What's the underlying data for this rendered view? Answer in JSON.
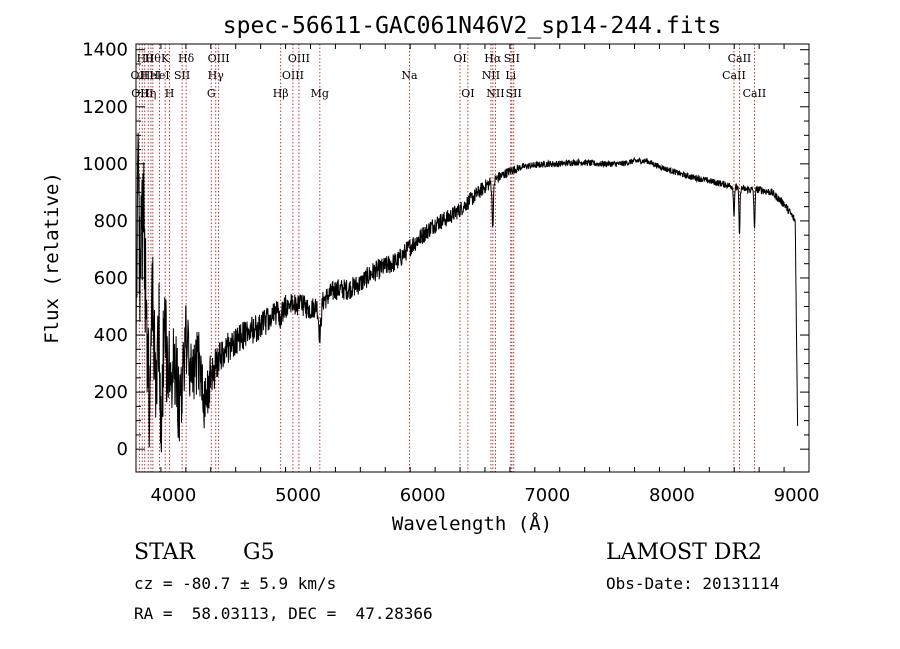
{
  "chart_data": {
    "type": "line",
    "title": "spec-56611-GAC061N46V2_sp14-244.fits",
    "xlabel": "Wavelength (Å)",
    "ylabel": "Flux (relative)",
    "xlim": [
      3700,
      9100
    ],
    "ylim": [
      -80,
      1420
    ],
    "xticks": [
      4000,
      5000,
      6000,
      7000,
      8000,
      9000
    ],
    "yticks": [
      0,
      200,
      400,
      600,
      800,
      1000,
      1200,
      1400
    ],
    "grid": false,
    "line_color": "#000000",
    "marker_line_color": "#b22222",
    "series": [
      {
        "anchors": [
          [
            3700,
            320
          ],
          [
            3715,
            1100
          ],
          [
            3730,
            600
          ],
          [
            3760,
            850
          ],
          [
            3790,
            300
          ],
          [
            3810,
            120
          ],
          [
            3830,
            550
          ],
          [
            3860,
            200
          ],
          [
            3880,
            480
          ],
          [
            3900,
            150
          ],
          [
            3930,
            420
          ],
          [
            3960,
            250
          ],
          [
            4000,
            340
          ],
          [
            4050,
            150
          ],
          [
            4100,
            380
          ],
          [
            4150,
            240
          ],
          [
            4200,
            320
          ],
          [
            4250,
            150
          ],
          [
            4300,
            260
          ],
          [
            4350,
            300
          ],
          [
            4400,
            340
          ],
          [
            4500,
            380
          ],
          [
            4600,
            410
          ],
          [
            4700,
            430
          ],
          [
            4800,
            470
          ],
          [
            4900,
            500
          ],
          [
            5000,
            510
          ],
          [
            5100,
            490
          ],
          [
            5200,
            520
          ],
          [
            5300,
            560
          ],
          [
            5400,
            560
          ],
          [
            5500,
            580
          ],
          [
            5600,
            620
          ],
          [
            5700,
            640
          ],
          [
            5800,
            660
          ],
          [
            5900,
            710
          ],
          [
            6000,
            750
          ],
          [
            6100,
            790
          ],
          [
            6200,
            810
          ],
          [
            6300,
            840
          ],
          [
            6400,
            880
          ],
          [
            6500,
            920
          ],
          [
            6600,
            950
          ],
          [
            6700,
            975
          ],
          [
            6800,
            990
          ],
          [
            6900,
            995
          ],
          [
            7000,
            1000
          ],
          [
            7100,
            1000
          ],
          [
            7200,
            1005
          ],
          [
            7300,
            1005
          ],
          [
            7400,
            1000
          ],
          [
            7500,
            1000
          ],
          [
            7600,
            1000
          ],
          [
            7700,
            1010
          ],
          [
            7800,
            1010
          ],
          [
            7900,
            990
          ],
          [
            8000,
            975
          ],
          [
            8100,
            960
          ],
          [
            8200,
            950
          ],
          [
            8300,
            940
          ],
          [
            8400,
            930
          ],
          [
            8500,
            920
          ],
          [
            8600,
            910
          ],
          [
            8700,
            910
          ],
          [
            8800,
            900
          ],
          [
            8900,
            860
          ],
          [
            8960,
            820
          ],
          [
            8990,
            800
          ],
          [
            9000,
            400
          ],
          [
            9010,
            30
          ]
        ],
        "noise": [
          [
            3700,
            220
          ],
          [
            3900,
            200
          ],
          [
            4150,
            120
          ],
          [
            4400,
            55
          ],
          [
            5000,
            40
          ],
          [
            5800,
            35
          ],
          [
            6500,
            25
          ],
          [
            6800,
            12
          ],
          [
            8000,
            10
          ],
          [
            8900,
            14
          ],
          [
            9010,
            14
          ]
        ],
        "dips": [
          {
            "x": 4860,
            "depth": 60,
            "width": 12
          },
          {
            "x": 5175,
            "depth": 110,
            "width": 14
          },
          {
            "x": 6563,
            "depth": 150,
            "width": 8
          },
          {
            "x": 8498,
            "depth": 100,
            "width": 6
          },
          {
            "x": 8542,
            "depth": 170,
            "width": 6
          },
          {
            "x": 8662,
            "depth": 140,
            "width": 6
          }
        ]
      }
    ],
    "lines": [
      {
        "x": 3727,
        "label": "OII",
        "row": 2
      },
      {
        "x": 3750,
        "label": "OIII",
        "row": 3
      },
      {
        "x": 3770,
        "label": "Hθ",
        "row": 1
      },
      {
        "x": 3798,
        "label": "Hη",
        "row": 3
      },
      {
        "x": 3820,
        "label": "HeI",
        "row": 2
      },
      {
        "x": 3835,
        "label": "Hθ",
        "row": 1
      },
      {
        "x": 3889,
        "label": "HeI",
        "row": 2
      },
      {
        "x": 3934,
        "label": "K",
        "row": 1
      },
      {
        "x": 3969,
        "label": "H",
        "row": 3
      },
      {
        "x": 4070,
        "label": "SII",
        "row": 2
      },
      {
        "x": 4102,
        "label": "Hδ",
        "row": 1
      },
      {
        "x": 4304,
        "label": "G",
        "row": 3
      },
      {
        "x": 4340,
        "label": "Hγ",
        "row": 2
      },
      {
        "x": 4363,
        "label": "OIII",
        "row": 1
      },
      {
        "x": 4861,
        "label": "Hβ",
        "row": 3
      },
      {
        "x": 4959,
        "label": "OIII",
        "row": 2
      },
      {
        "x": 5007,
        "label": "OIII",
        "row": 1
      },
      {
        "x": 5175,
        "label": "Mg",
        "row": 3
      },
      {
        "x": 5894,
        "label": "Na",
        "row": 2
      },
      {
        "x": 6300,
        "label": "OI",
        "row": 1
      },
      {
        "x": 6363,
        "label": "OI",
        "row": 3
      },
      {
        "x": 6548,
        "label": "NII",
        "row": 2
      },
      {
        "x": 6563,
        "label": "Hα",
        "row": 1
      },
      {
        "x": 6584,
        "label": "NII",
        "row": 3
      },
      {
        "x": 6707,
        "label": "Li",
        "row": 2
      },
      {
        "x": 6716,
        "label": "SII",
        "row": 1
      },
      {
        "x": 6731,
        "label": "SII",
        "row": 3
      },
      {
        "x": 8498,
        "label": "CaII",
        "row": 2
      },
      {
        "x": 8542,
        "label": "CaII",
        "row": 1
      },
      {
        "x": 8662,
        "label": "CaII",
        "row": 3
      }
    ]
  },
  "info": {
    "object_type": "STAR",
    "subclass": "G5",
    "survey": "LAMOST DR2",
    "cz_line": "cz = -80.7 ± 5.9 km/s",
    "obs_date_line": "Obs-Date: 20131114",
    "coord_line": "RA =  58.03113, DEC =  47.28366"
  }
}
